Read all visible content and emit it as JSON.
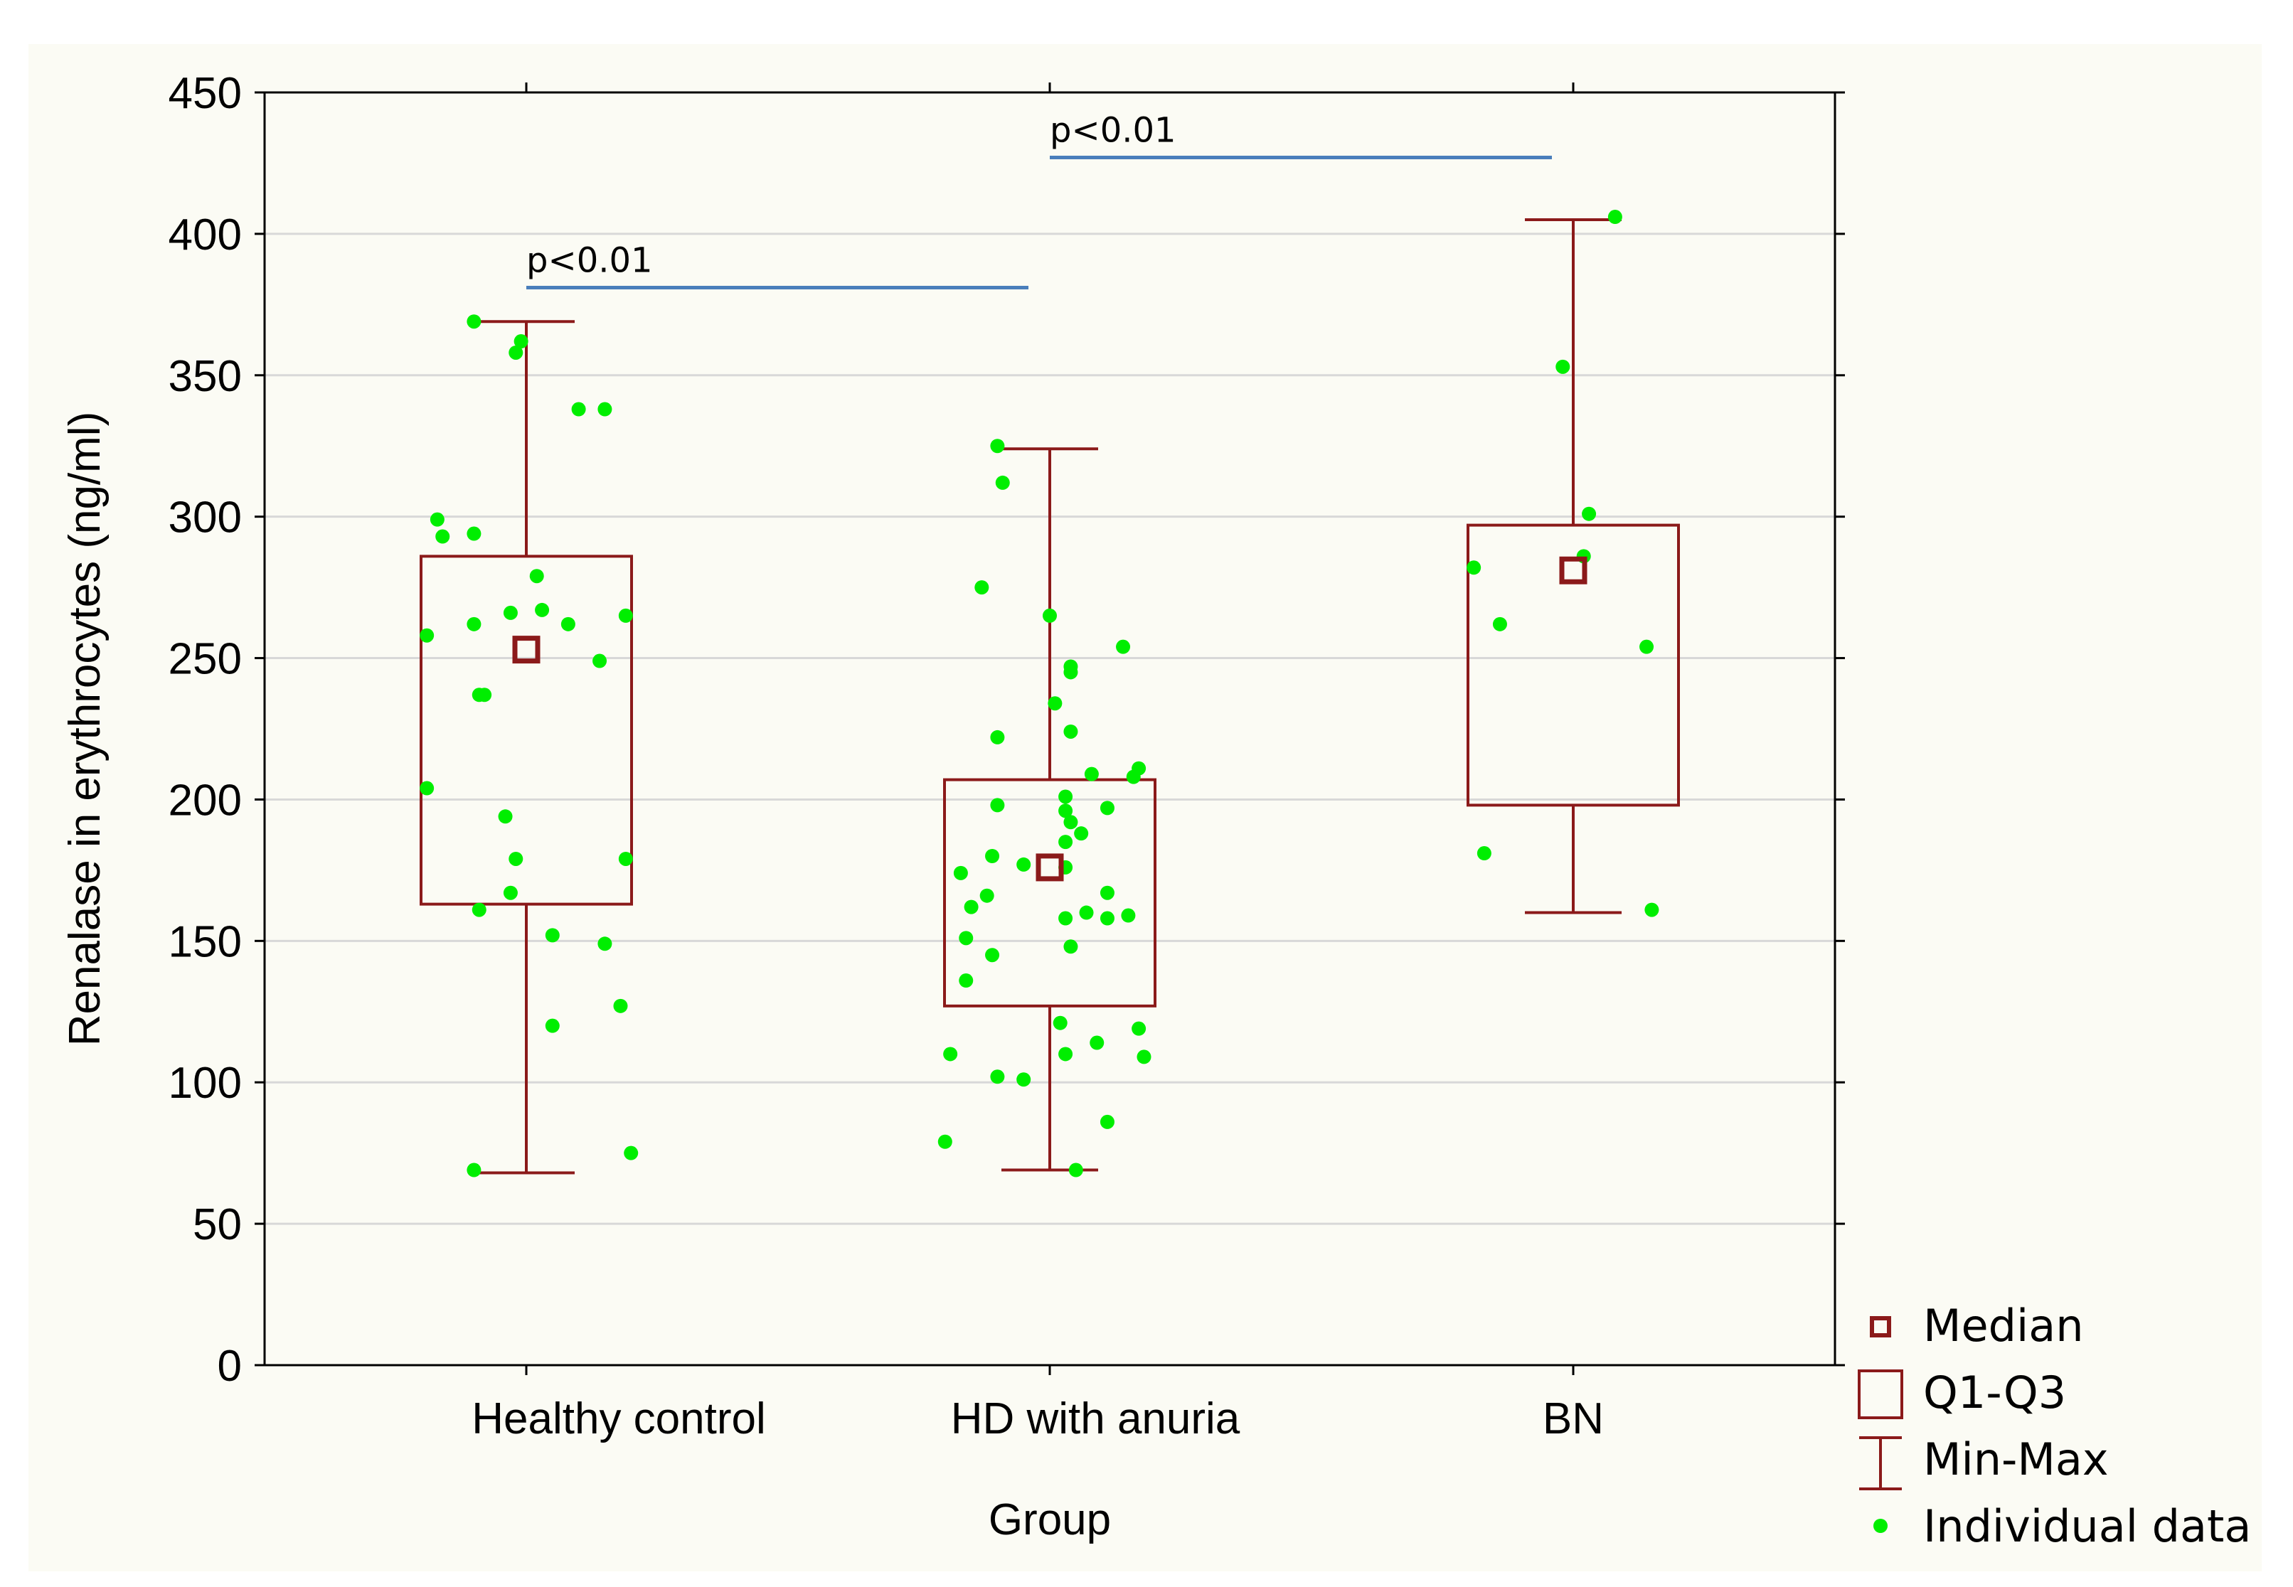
{
  "chart_data": {
    "type": "box",
    "xlabel": "Group",
    "ylabel": "Renalase in erythrocytes (ng/ml)",
    "ylim": [
      0,
      450
    ],
    "yticks": [
      0,
      50,
      100,
      150,
      200,
      250,
      300,
      350,
      400,
      450
    ],
    "grid": true,
    "legend_position": "bottom-right, outside plot",
    "colors": {
      "box": "#8b1a1a",
      "points": "#00ee00",
      "bracket": "#4a7ebb",
      "grid": "#d8d8d8"
    },
    "categories": [
      "Healthy control",
      "HD with anuria",
      "BN"
    ],
    "groups": [
      {
        "name": "Healthy control",
        "median": 253,
        "q1": 163,
        "q3": 286,
        "min": 68,
        "max": 369,
        "points": [
          {
            "dx": -0.1,
            "y": 369
          },
          {
            "dx": -0.01,
            "y": 362
          },
          {
            "dx": -0.02,
            "y": 358
          },
          {
            "dx": 0.1,
            "y": 338
          },
          {
            "dx": 0.15,
            "y": 338
          },
          {
            "dx": -0.17,
            "y": 299
          },
          {
            "dx": -0.16,
            "y": 293
          },
          {
            "dx": -0.1,
            "y": 294
          },
          {
            "dx": 0.02,
            "y": 279
          },
          {
            "dx": 0.03,
            "y": 267
          },
          {
            "dx": -0.03,
            "y": 266
          },
          {
            "dx": 0.19,
            "y": 265
          },
          {
            "dx": -0.1,
            "y": 262
          },
          {
            "dx": 0.08,
            "y": 262
          },
          {
            "dx": -0.19,
            "y": 258
          },
          {
            "dx": 0.14,
            "y": 249
          },
          {
            "dx": -0.09,
            "y": 237
          },
          {
            "dx": -0.08,
            "y": 237
          },
          {
            "dx": -0.19,
            "y": 204
          },
          {
            "dx": -0.04,
            "y": 194
          },
          {
            "dx": -0.02,
            "y": 179
          },
          {
            "dx": 0.19,
            "y": 179
          },
          {
            "dx": -0.03,
            "y": 167
          },
          {
            "dx": -0.09,
            "y": 161
          },
          {
            "dx": 0.05,
            "y": 152
          },
          {
            "dx": 0.15,
            "y": 149
          },
          {
            "dx": 0.18,
            "y": 127
          },
          {
            "dx": 0.05,
            "y": 120
          },
          {
            "dx": 0.2,
            "y": 75
          },
          {
            "dx": -0.1,
            "y": 69
          }
        ]
      },
      {
        "name": "HD with anuria",
        "median": 176,
        "q1": 127,
        "q3": 207,
        "min": 69,
        "max": 324,
        "points": [
          {
            "dx": -0.1,
            "y": 325
          },
          {
            "dx": -0.09,
            "y": 312
          },
          {
            "dx": -0.13,
            "y": 275
          },
          {
            "dx": 0.0,
            "y": 265
          },
          {
            "dx": 0.04,
            "y": 247
          },
          {
            "dx": 0.04,
            "y": 245
          },
          {
            "dx": 0.14,
            "y": 254
          },
          {
            "dx": 0.01,
            "y": 234
          },
          {
            "dx": -0.1,
            "y": 222
          },
          {
            "dx": 0.04,
            "y": 224
          },
          {
            "dx": 0.08,
            "y": 209
          },
          {
            "dx": 0.17,
            "y": 211
          },
          {
            "dx": 0.16,
            "y": 208
          },
          {
            "dx": 0.03,
            "y": 201
          },
          {
            "dx": -0.1,
            "y": 198
          },
          {
            "dx": 0.03,
            "y": 196
          },
          {
            "dx": 0.04,
            "y": 192
          },
          {
            "dx": 0.06,
            "y": 188
          },
          {
            "dx": 0.11,
            "y": 197
          },
          {
            "dx": 0.03,
            "y": 185
          },
          {
            "dx": -0.11,
            "y": 180
          },
          {
            "dx": -0.05,
            "y": 177
          },
          {
            "dx": 0.03,
            "y": 176
          },
          {
            "dx": -0.17,
            "y": 174
          },
          {
            "dx": -0.12,
            "y": 166
          },
          {
            "dx": -0.15,
            "y": 162
          },
          {
            "dx": 0.11,
            "y": 167
          },
          {
            "dx": 0.07,
            "y": 160
          },
          {
            "dx": 0.03,
            "y": 158
          },
          {
            "dx": 0.11,
            "y": 158
          },
          {
            "dx": 0.15,
            "y": 159
          },
          {
            "dx": -0.16,
            "y": 151
          },
          {
            "dx": 0.04,
            "y": 148
          },
          {
            "dx": -0.11,
            "y": 145
          },
          {
            "dx": -0.16,
            "y": 136
          },
          {
            "dx": 0.02,
            "y": 121
          },
          {
            "dx": 0.17,
            "y": 119
          },
          {
            "dx": 0.09,
            "y": 114
          },
          {
            "dx": -0.19,
            "y": 110
          },
          {
            "dx": 0.03,
            "y": 110
          },
          {
            "dx": 0.18,
            "y": 109
          },
          {
            "dx": -0.1,
            "y": 102
          },
          {
            "dx": -0.05,
            "y": 101
          },
          {
            "dx": 0.11,
            "y": 86
          },
          {
            "dx": -0.2,
            "y": 79
          },
          {
            "dx": 0.05,
            "y": 69
          }
        ]
      },
      {
        "name": "BN",
        "median": 281,
        "q1": 198,
        "q3": 297,
        "min": 160,
        "max": 405,
        "points": [
          {
            "dx": 0.08,
            "y": 406
          },
          {
            "dx": -0.02,
            "y": 353
          },
          {
            "dx": 0.03,
            "y": 301
          },
          {
            "dx": 0.02,
            "y": 286
          },
          {
            "dx": -0.19,
            "y": 282
          },
          {
            "dx": -0.14,
            "y": 262
          },
          {
            "dx": 0.14,
            "y": 254
          },
          {
            "dx": -0.17,
            "y": 181
          },
          {
            "dx": 0.15,
            "y": 161
          }
        ]
      }
    ],
    "annotations": [
      {
        "text": "p<0.01",
        "from": 0,
        "to": 1,
        "y": 381
      },
      {
        "text": "p<0.01",
        "from": 1,
        "to": 2,
        "y": 427
      }
    ],
    "legend": [
      {
        "symbol": "median",
        "label": "Median"
      },
      {
        "symbol": "box",
        "label": "Q1-Q3"
      },
      {
        "symbol": "whisker",
        "label": "Min-Max"
      },
      {
        "symbol": "point",
        "label": "Individual data"
      }
    ]
  }
}
